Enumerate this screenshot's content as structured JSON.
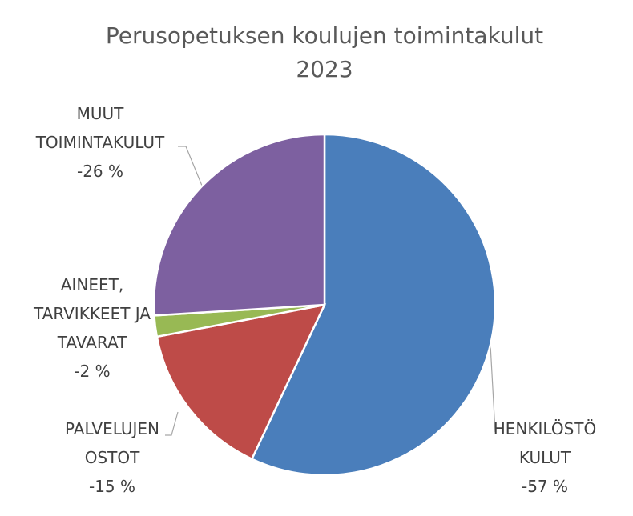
{
  "chart_data": {
    "type": "pie",
    "title": "Perusopetuksen koulujen toimintakulut 2023",
    "categories": [
      "HENKILÖSTÖ KULUT",
      "PALVELUJEN OSTOT",
      "AINEET, TARVIKKEET JA TAVARAT",
      "MUUT TOIMINTAKULUT"
    ],
    "values": [
      -57,
      -15,
      -2,
      -26
    ],
    "value_labels": [
      "-57 %",
      "-15 %",
      "-2 %",
      "-26 %"
    ],
    "colors": [
      "#4a7ebb",
      "#be4b48",
      "#98b954",
      "#7d60a0"
    ]
  }
}
